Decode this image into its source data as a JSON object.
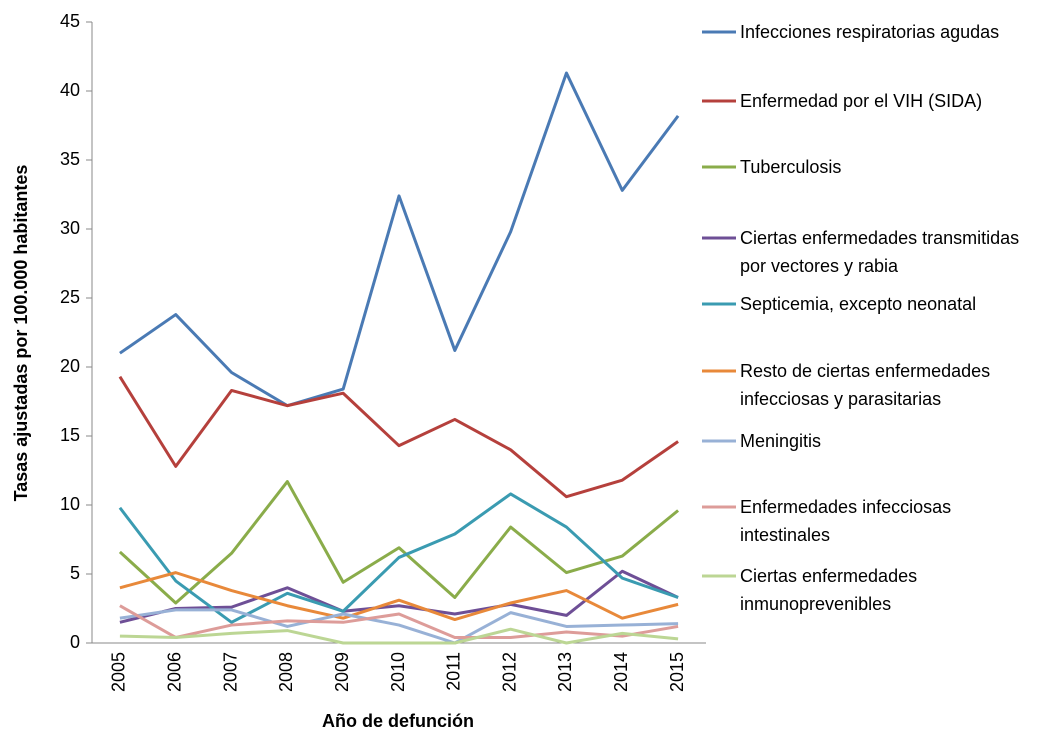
{
  "chart_data": {
    "type": "line",
    "y_label": "Tasas ajustadas por 100.000 habitantes",
    "x_label": "Año de defunción",
    "categories": [
      "2005",
      "2006",
      "2007",
      "2008",
      "2009",
      "2010",
      "2011",
      "2012",
      "2013",
      "2014",
      "2015"
    ],
    "ylim": [
      0,
      45
    ],
    "yticks": [
      0,
      5,
      10,
      15,
      20,
      25,
      30,
      35,
      40,
      45
    ],
    "grid": false,
    "legend": "right",
    "series": [
      {
        "name": "Infecciones respiratorias agudas",
        "color": "#4a7ab4",
        "values": [
          21.0,
          23.8,
          19.6,
          17.2,
          18.4,
          32.4,
          21.2,
          29.8,
          41.3,
          32.8,
          38.2
        ]
      },
      {
        "name": "Enfermedad por el VIH (SIDA)",
        "color": "#b5403c",
        "values": [
          19.3,
          12.8,
          18.3,
          17.2,
          18.1,
          14.3,
          16.2,
          14.0,
          10.6,
          11.8,
          14.6
        ]
      },
      {
        "name": "Tuberculosis",
        "color": "#8aac4a",
        "values": [
          6.6,
          2.9,
          6.5,
          11.7,
          4.4,
          6.9,
          3.3,
          8.4,
          5.1,
          6.3,
          9.6
        ]
      },
      {
        "name": "Ciertas enfermedades transmitidas por vectores y rabia",
        "color": "#6e4f96",
        "values": [
          1.5,
          2.5,
          2.6,
          4.0,
          2.3,
          2.7,
          2.1,
          2.8,
          2.0,
          5.2,
          3.3
        ]
      },
      {
        "name": "Septicemia, excepto neonatal",
        "color": "#3a9bb1",
        "values": [
          9.8,
          4.5,
          1.5,
          3.6,
          2.3,
          6.2,
          7.9,
          10.8,
          8.4,
          4.7,
          3.3
        ]
      },
      {
        "name": "Resto de ciertas enfermedades infecciosas y parasitarias",
        "color": "#e8893a",
        "values": [
          4.0,
          5.1,
          3.8,
          2.7,
          1.8,
          3.1,
          1.7,
          2.9,
          3.8,
          1.8,
          2.8
        ]
      },
      {
        "name": "Meningitis",
        "color": "#98b1d6",
        "values": [
          1.8,
          2.4,
          2.4,
          1.2,
          2.1,
          1.3,
          0.0,
          2.2,
          1.2,
          1.3,
          1.4
        ]
      },
      {
        "name": "Enfermedades infecciosas intestinales",
        "color": "#dd9c99",
        "values": [
          2.7,
          0.4,
          1.3,
          1.6,
          1.5,
          2.1,
          0.4,
          0.4,
          0.8,
          0.5,
          1.2
        ]
      },
      {
        "name": "Ciertas enfermedades inmunoprevenibles",
        "color": "#bcd694",
        "values": [
          0.5,
          0.4,
          0.7,
          0.9,
          0.0,
          0.0,
          0.0,
          1.0,
          0.0,
          0.7,
          0.3
        ]
      }
    ]
  }
}
